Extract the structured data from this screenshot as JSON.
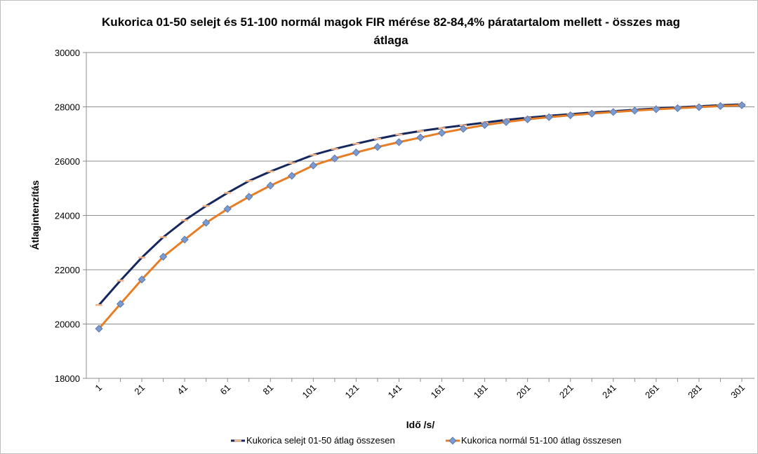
{
  "chart_data": {
    "type": "line",
    "title_lines": [
      "Kukorica 01-50 selejt és 51-100 normál magok FIR mérése 82-84,4% páratartalom mellett - összes mag",
      "átlaga"
    ],
    "xlabel": "Idő /s/",
    "ylabel": "Átlagintenzítás",
    "ylim": [
      18000,
      30000
    ],
    "yticks": [
      18000,
      20000,
      22000,
      24000,
      26000,
      28000,
      30000
    ],
    "x": [
      1,
      11,
      21,
      31,
      41,
      51,
      61,
      71,
      81,
      91,
      101,
      111,
      121,
      131,
      141,
      151,
      161,
      171,
      181,
      191,
      201,
      211,
      221,
      231,
      241,
      251,
      261,
      271,
      281,
      291,
      301
    ],
    "xtick_labels": [
      "1",
      "21",
      "41",
      "61",
      "81",
      "101",
      "121",
      "141",
      "161",
      "181",
      "201",
      "221",
      "241",
      "261",
      "281",
      "301"
    ],
    "grid": "horizontal",
    "legend_position": "bottom",
    "series": [
      {
        "name": "Kukorica selejt 01-50 átlag összesen",
        "color": "#14275e",
        "marker": "dash",
        "marker_color": "#f3b48a",
        "values": [
          20700,
          21600,
          22450,
          23200,
          23820,
          24350,
          24830,
          25270,
          25620,
          25930,
          26230,
          26450,
          26640,
          26820,
          26980,
          27110,
          27220,
          27320,
          27420,
          27520,
          27600,
          27670,
          27730,
          27790,
          27840,
          27890,
          27940,
          27980,
          28020,
          28060,
          28090
        ]
      },
      {
        "name": "Kukorica normál 51-100 átlag összesen",
        "color": "#e77d24",
        "marker": "diamond",
        "marker_color": "#7b9ad0",
        "values": [
          19830,
          20740,
          21640,
          22480,
          23110,
          23730,
          24240,
          24690,
          25100,
          25460,
          25840,
          26100,
          26320,
          26520,
          26700,
          26870,
          27040,
          27190,
          27330,
          27440,
          27540,
          27620,
          27690,
          27750,
          27810,
          27860,
          27910,
          27950,
          27990,
          28030,
          28060
        ]
      }
    ]
  }
}
